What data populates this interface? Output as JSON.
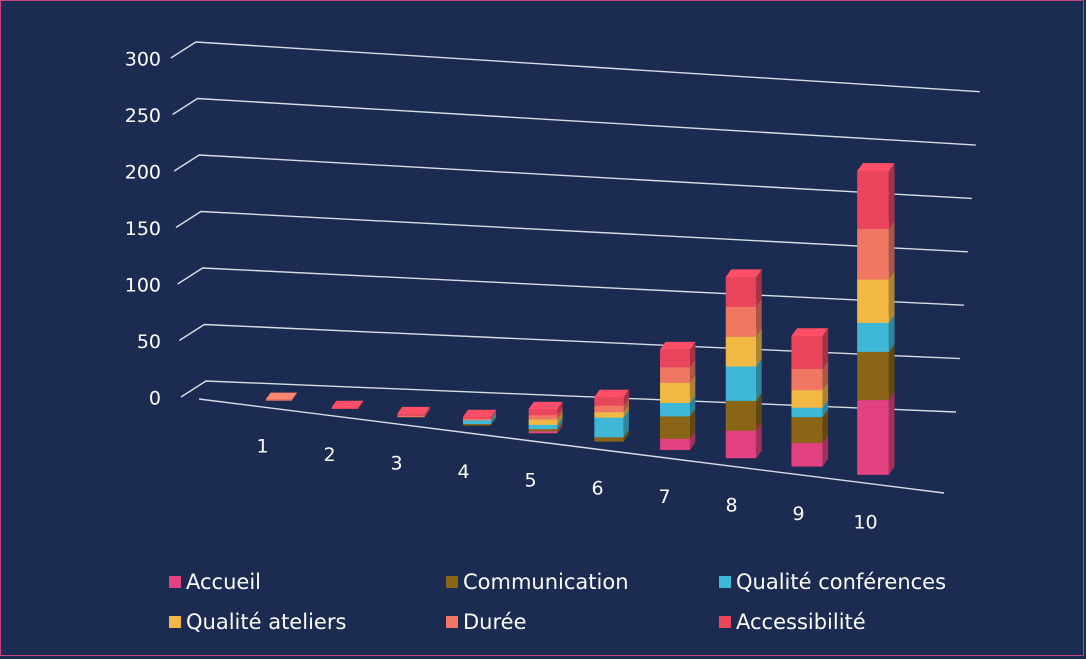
{
  "chart_data": {
    "type": "bar",
    "stacked": true,
    "three_d": true,
    "title": "",
    "xlabel": "",
    "ylabel": "",
    "ylim": [
      0,
      300
    ],
    "y_ticks": [
      0,
      50,
      100,
      150,
      200,
      250,
      300
    ],
    "y_tick_labels": [
      "0",
      "50",
      "100",
      "150",
      "200",
      "250",
      "300"
    ],
    "grid": true,
    "legend_position": "bottom",
    "categories": [
      "1",
      "2",
      "3",
      "4",
      "5",
      "6",
      "7",
      "8",
      "9",
      "10"
    ],
    "series": [
      {
        "name": "Accueil",
        "color": "#e2427f",
        "values": [
          0,
          0,
          0,
          0,
          2,
          0,
          10,
          24,
          20,
          62
        ]
      },
      {
        "name": "Communication",
        "color": "#8a6516",
        "values": [
          0,
          0,
          0,
          1,
          2,
          4,
          20,
          26,
          22,
          40
        ]
      },
      {
        "name": "Qualité conférences",
        "color": "#3fb8d8",
        "values": [
          0,
          0,
          0,
          4,
          4,
          18,
          12,
          30,
          8,
          24
        ]
      },
      {
        "name": "Qualité ateliers",
        "color": "#f2b844",
        "values": [
          0,
          0,
          0,
          0,
          5,
          5,
          18,
          26,
          15,
          36
        ]
      },
      {
        "name": "Durée",
        "color": "#f07863",
        "values": [
          1,
          0,
          1,
          1,
          4,
          6,
          14,
          26,
          18,
          42
        ]
      },
      {
        "name": "Accessibilité",
        "color": "#e9465d",
        "values": [
          0,
          1,
          2,
          2,
          6,
          8,
          16,
          26,
          28,
          48
        ]
      }
    ]
  }
}
